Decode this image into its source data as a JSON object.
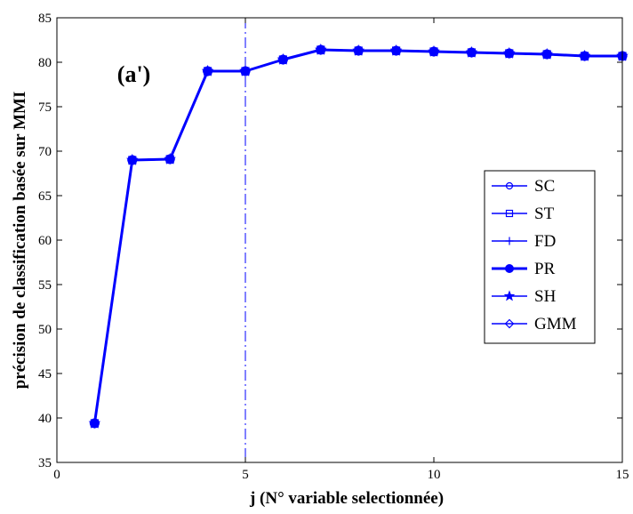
{
  "chart_data": {
    "type": "line",
    "xlabel": "j (N° variable selectionnée)",
    "ylabel": "précision de classification basée sur MMI",
    "xlim": [
      0,
      15
    ],
    "ylim": [
      35,
      85
    ],
    "x_ticks": [
      0,
      5,
      10,
      15
    ],
    "y_ticks": [
      35,
      40,
      45,
      50,
      55,
      60,
      65,
      70,
      75,
      80,
      85
    ],
    "grid": false,
    "legend_position": "right",
    "annotation": {
      "text": "(a')",
      "x": 1.6,
      "y": 77.8
    },
    "vertical_line": {
      "x": 5,
      "style": "dash-dot",
      "color": "#0000ff"
    },
    "color": "#0000ff",
    "x": [
      1,
      2,
      3,
      4,
      5,
      6,
      7,
      8,
      9,
      10,
      11,
      12,
      13,
      14,
      15
    ],
    "series": [
      {
        "name": "SC",
        "marker": "circle",
        "values": [
          39.4,
          69.0,
          69.1,
          79.0,
          79.0,
          80.3,
          81.4,
          81.3,
          81.3,
          81.2,
          81.1,
          81.0,
          80.9,
          80.7,
          80.7
        ]
      },
      {
        "name": "ST",
        "marker": "square",
        "values": [
          39.4,
          69.0,
          69.1,
          79.0,
          79.0,
          80.3,
          81.4,
          81.3,
          81.3,
          81.2,
          81.1,
          81.0,
          80.9,
          80.7,
          80.7
        ]
      },
      {
        "name": "FD",
        "marker": "plus",
        "values": [
          39.4,
          69.0,
          69.1,
          79.0,
          79.0,
          80.3,
          81.4,
          81.3,
          81.3,
          81.2,
          81.1,
          81.0,
          80.9,
          80.7,
          80.7
        ]
      },
      {
        "name": "PR",
        "marker": "dot",
        "values": [
          39.4,
          69.0,
          69.1,
          79.0,
          79.0,
          80.3,
          81.4,
          81.3,
          81.3,
          81.2,
          81.1,
          81.0,
          80.9,
          80.7,
          80.7
        ]
      },
      {
        "name": "SH",
        "marker": "star",
        "values": [
          39.4,
          69.0,
          69.1,
          79.0,
          79.0,
          80.3,
          81.4,
          81.3,
          81.3,
          81.2,
          81.1,
          81.0,
          80.9,
          80.7,
          80.7
        ]
      },
      {
        "name": "GMM",
        "marker": "diamond",
        "values": [
          39.4,
          69.0,
          69.1,
          79.0,
          79.0,
          80.3,
          81.4,
          81.3,
          81.3,
          81.2,
          81.1,
          81.0,
          80.9,
          80.7,
          80.7
        ]
      }
    ]
  }
}
